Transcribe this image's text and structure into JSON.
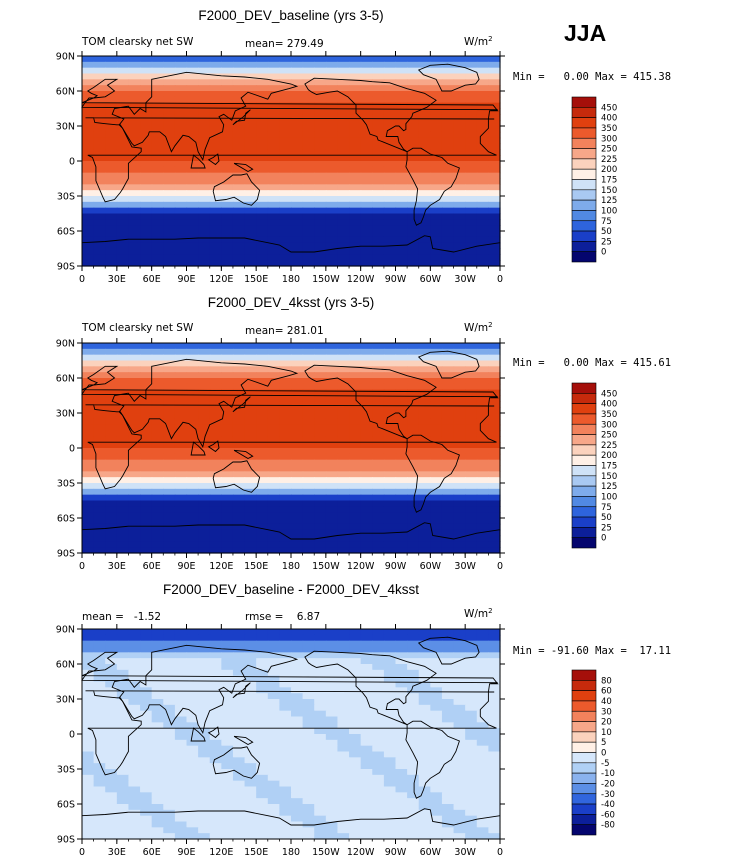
{
  "season": "JJA",
  "chart_data": [
    {
      "type": "heatmap",
      "title": "F2000_DEV_baseline (yrs 3-5)",
      "left_label": "TOM clearsky net SW",
      "center_label": "mean= 279.49",
      "units": "W/m",
      "units_sup": "2",
      "minmax": "Min =   0.00 Max = 415.38",
      "field": "abs",
      "x_ticks": [
        "0",
        "30E",
        "60E",
        "90E",
        "120E",
        "150E",
        "180",
        "150W",
        "120W",
        "90W",
        "60W",
        "30W",
        "0"
      ],
      "y_ticks": [
        "90N",
        "60N",
        "30N",
        "0",
        "30S",
        "60S",
        "90S"
      ],
      "colorbar": {
        "labels": [
          "450",
          "400",
          "350",
          "300",
          "250",
          "225",
          "200",
          "175",
          "150",
          "125",
          "100",
          "75",
          "50",
          "25",
          "0"
        ],
        "colors": [
          "#a50f0a",
          "#c62a0c",
          "#e0400f",
          "#ec5a2c",
          "#f2825c",
          "#f7a789",
          "#fbd2bd",
          "#fff0e6",
          "#cfe2f7",
          "#a9c9f2",
          "#7eabeb",
          "#5189e3",
          "#2e64dd",
          "#1a3fc8",
          "#0c1f9a",
          "#04056e"
        ]
      }
    },
    {
      "type": "heatmap",
      "title": "F2000_DEV_4ksst (yrs 3-5)",
      "left_label": "TOM clearsky net SW",
      "center_label": "mean= 281.01",
      "units": "W/m",
      "units_sup": "2",
      "minmax": "Min =   0.00 Max = 415.61",
      "field": "abs",
      "x_ticks": [
        "0",
        "30E",
        "60E",
        "90E",
        "120E",
        "150E",
        "180",
        "150W",
        "120W",
        "90W",
        "60W",
        "30W",
        "0"
      ],
      "y_ticks": [
        "90N",
        "60N",
        "30N",
        "0",
        "30S",
        "60S",
        "90S"
      ],
      "colorbar": {
        "labels": [
          "450",
          "400",
          "350",
          "300",
          "250",
          "225",
          "200",
          "175",
          "150",
          "125",
          "100",
          "75",
          "50",
          "25",
          "0"
        ],
        "colors": [
          "#a50f0a",
          "#c62a0c",
          "#e0400f",
          "#ec5a2c",
          "#f2825c",
          "#f7a789",
          "#fbd2bd",
          "#fff0e6",
          "#cfe2f7",
          "#a9c9f2",
          "#7eabeb",
          "#5189e3",
          "#2e64dd",
          "#1a3fc8",
          "#0c1f9a",
          "#04056e"
        ]
      }
    },
    {
      "type": "heatmap",
      "title": "F2000_DEV_baseline - F2000_DEV_4ksst",
      "left_label": "mean =   -1.52",
      "center_label": "rmse =    6.87",
      "units": "W/m",
      "units_sup": "2",
      "minmax": "Min = -91.60 Max =  17.11",
      "field": "diff",
      "x_ticks": [
        "0",
        "30E",
        "60E",
        "90E",
        "120E",
        "150E",
        "180",
        "150W",
        "120W",
        "90W",
        "60W",
        "30W",
        "0"
      ],
      "y_ticks": [
        "90N",
        "60N",
        "30N",
        "0",
        "30S",
        "60S",
        "90S"
      ],
      "colorbar": {
        "labels": [
          "80",
          "60",
          "40",
          "30",
          "20",
          "10",
          "5",
          "0",
          "-5",
          "-10",
          "-20",
          "-30",
          "-40",
          "-60",
          "-80"
        ],
        "colors": [
          "#a50f0a",
          "#c62a0c",
          "#e0400f",
          "#ec5a2c",
          "#f2825c",
          "#f7a789",
          "#fbd2bd",
          "#fff0e6",
          "#d6e7fb",
          "#b0d0f5",
          "#8ab2ee",
          "#5c8fe6",
          "#3166de",
          "#1a3fc8",
          "#0c1f9a",
          "#04056e"
        ]
      }
    }
  ]
}
